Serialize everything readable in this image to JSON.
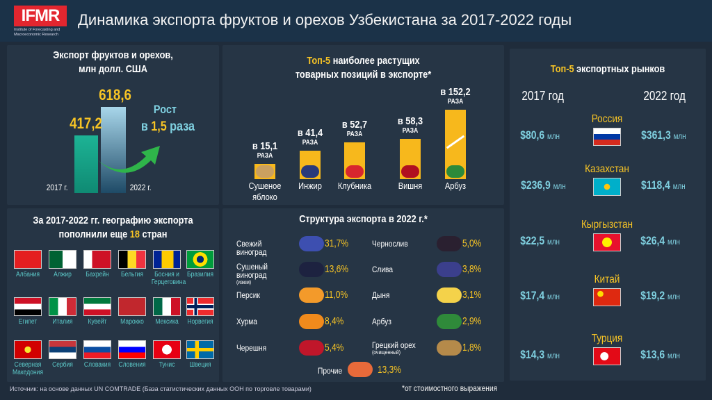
{
  "header": {
    "logo": "IFMR",
    "logo_sub": "Institute of Forecasting and Macroeconomic Research",
    "title": "Динамика экспорта фруктов и орехов Узбекистана за 2017-2022 годы"
  },
  "export_panel": {
    "title_1": "Экспорт фруктов и орехов,",
    "title_2": "млн долл. США",
    "growth_label": "Рост",
    "growth_prefix": "в",
    "growth_value": "1,5",
    "growth_suffix": "раза",
    "value_labels": [
      "417,2",
      "618,6"
    ],
    "year_labels": [
      "2017 г.",
      "2022 г."
    ]
  },
  "top5_panel": {
    "title_accent": "Топ-5",
    "title_rest": "наиболее растущих",
    "title_2": "товарных позиций в экспорте*",
    "unit": "РАЗА",
    "items": [
      {
        "label": "в 15,1",
        "name": "Сушеное яблоко"
      },
      {
        "label": "в 41,4",
        "name": "Инжир"
      },
      {
        "label": "в 52,7",
        "name": "Клубника"
      },
      {
        "label": "в 58,3",
        "name": "Вишня"
      },
      {
        "label": "в 152,2",
        "name": "Арбуз"
      }
    ]
  },
  "chart_data": [
    {
      "type": "bar",
      "title": "Экспорт фруктов и орехов, млн долл. США",
      "categories": [
        "2017",
        "2022"
      ],
      "values": [
        417.2,
        618.6
      ],
      "ylim": [
        0,
        700
      ]
    },
    {
      "type": "bar",
      "title": "Топ-5 наиболее растущих товарных позиций в экспорте",
      "categories": [
        "Сушеное яблоко",
        "Инжир",
        "Клубника",
        "Вишня",
        "Арбуз"
      ],
      "values": [
        15.1,
        41.4,
        52.7,
        58.3,
        152.2
      ],
      "ylabel": "раз",
      "axis_break": true
    },
    {
      "type": "table",
      "title": "Структура экспорта в 2022 г.",
      "categories": [
        "Свежий виноград",
        "Сушеный виноград (изюм)",
        "Персик",
        "Хурма",
        "Черешня",
        "Чернослив",
        "Слива",
        "Дыня",
        "Арбуз",
        "Грецкий орех (очищенный)",
        "Прочие"
      ],
      "values": [
        31.7,
        13.6,
        11.0,
        8.4,
        5.4,
        5.0,
        3.8,
        3.1,
        2.9,
        1.8,
        13.3
      ]
    }
  ],
  "countries_panel": {
    "title_1": "За 2017-2022 гг. географию экспорта",
    "title_2a": "пополнили еще",
    "title_count": "18",
    "title_2b": "стран",
    "countries": [
      "Албания",
      "Алжир",
      "Бахрейн",
      "Бельгия",
      "Босния и Герцеговина",
      "Бразилия",
      "Египет",
      "Италия",
      "Кувейт",
      "Марокко",
      "Мексика",
      "Норвегия",
      "Северная Македония",
      "Сербия",
      "Словакия",
      "Словения",
      "Тунис",
      "Швеция"
    ]
  },
  "structure_panel": {
    "title": "Структура экспорта в 2022 г.*",
    "left": [
      {
        "name": "Свежий виноград",
        "pct": "31,7%",
        "color": "#3d4fb0"
      },
      {
        "name": "Сушеный виноград",
        "note": "(изюм)",
        "pct": "13,6%",
        "color": "#1d2240"
      },
      {
        "name": "Персик",
        "pct": "11,0%",
        "color": "#f39a2a"
      },
      {
        "name": "Хурма",
        "pct": "8,4%",
        "color": "#f08a1c"
      },
      {
        "name": "Черешня",
        "pct": "5,4%",
        "color": "#c0162a"
      }
    ],
    "right": [
      {
        "name": "Чернослив",
        "pct": "5,0%",
        "color": "#2a2030"
      },
      {
        "name": "Слива",
        "pct": "3,8%",
        "color": "#3b3f8c"
      },
      {
        "name": "Дыня",
        "pct": "3,1%",
        "color": "#f4d24a"
      },
      {
        "name": "Арбуз",
        "pct": "2,9%",
        "color": "#2f8a3a"
      },
      {
        "name": "Грецкий орех",
        "note": "(очищенный)",
        "pct": "1,8%",
        "color": "#b58a4a"
      }
    ],
    "other": {
      "name": "Прочие",
      "pct": "13,3%",
      "color": "#e86a3a"
    }
  },
  "markets_panel": {
    "title_accent": "Топ-5",
    "title_rest": "экспортных рынков",
    "year_2017": "2017 год",
    "year_2022": "2022 год",
    "unit": "млн",
    "markets": [
      {
        "name": "Россия",
        "v2017": "$80,6",
        "v2022": "$361,3"
      },
      {
        "name": "Казахстан",
        "v2017": "$236,9",
        "v2022": "$118,4"
      },
      {
        "name": "Кыргызстан",
        "v2017": "$22,5",
        "v2022": "$26,4"
      },
      {
        "name": "Китай",
        "v2017": "$17,4",
        "v2022": "$19,2"
      },
      {
        "name": "Турция",
        "v2017": "$14,3",
        "v2022": "$13,6"
      }
    ]
  },
  "footer": {
    "source": "Источник: на основе данных UN COMTRADE (База статистических данных ООН по торговле товарами)",
    "note": "*от стоимостного выражения"
  },
  "colors": {
    "accent": "#f7c425",
    "teal": "#5cc8c8",
    "value": "#7fd0e0"
  }
}
